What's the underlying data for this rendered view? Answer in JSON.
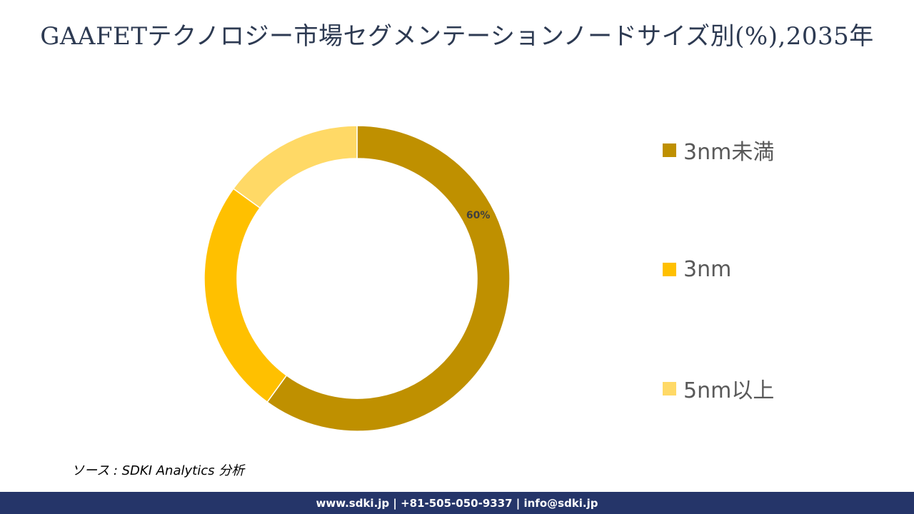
{
  "title": "GAAFETテクノロジー市場セグメンテーションノードサイズ別(%),2035年",
  "chart_data": {
    "type": "pie",
    "variant": "donut",
    "categories": [
      "3nm未満",
      "3nm",
      "5nm以上"
    ],
    "values": [
      60,
      25,
      15
    ],
    "unit": "%",
    "colors": [
      "#bf9000",
      "#ffc000",
      "#ffd966"
    ],
    "data_labels": [
      "60%",
      "",
      ""
    ],
    "legend_position": "right",
    "title": "GAAFETテクノロジー市場セグメンテーションノードサイズ別(%),2035年"
  },
  "source": "ソース : SDKI Analytics 分析",
  "footer": "www.sdki.jp | +81-505-050-9337 | info@sdki.jp"
}
